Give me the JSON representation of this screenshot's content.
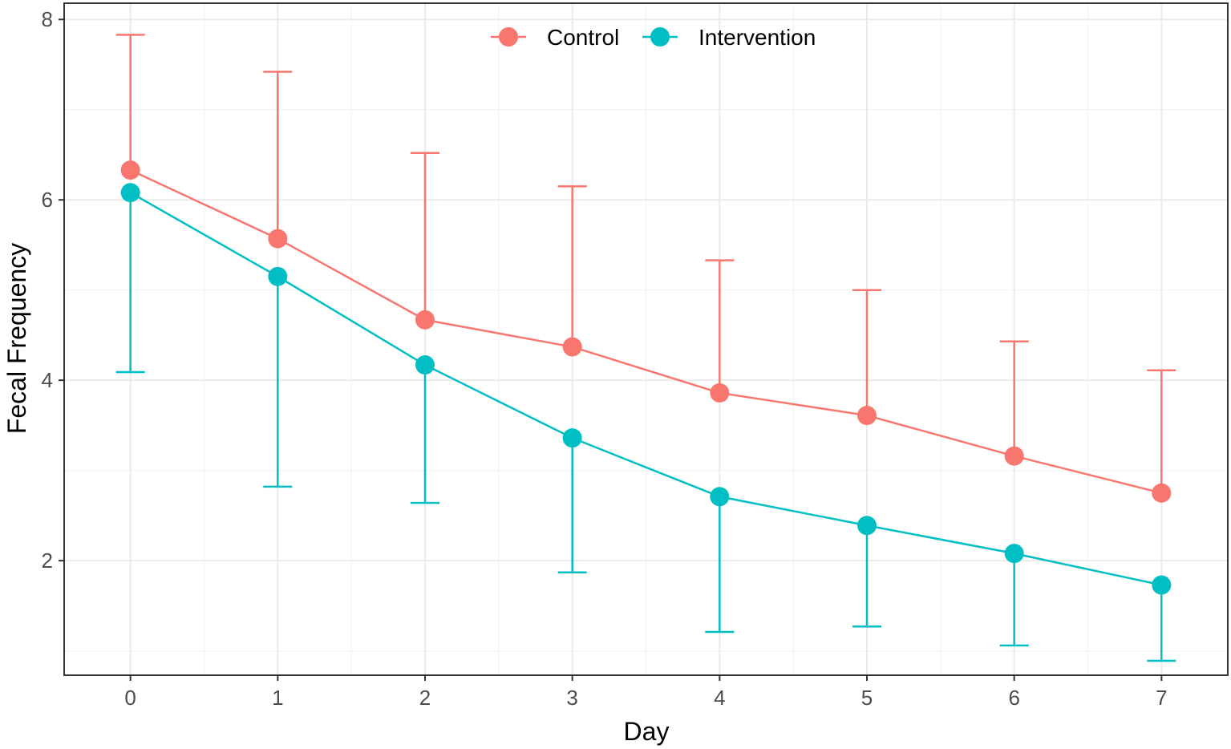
{
  "chart_data": {
    "type": "line",
    "title": "",
    "xlabel": "Day",
    "ylabel": "Fecal Frequency",
    "x": [
      0,
      1,
      2,
      3,
      4,
      5,
      6,
      7
    ],
    "xlim": [
      -0.45,
      7.45
    ],
    "ylim": [
      0.73,
      8.18
    ],
    "xticks": [
      "0",
      "1",
      "2",
      "3",
      "4",
      "5",
      "6",
      "7"
    ],
    "yticks": [
      "2",
      "4",
      "6",
      "8"
    ],
    "grid": true,
    "legend_position": "top-center",
    "series": [
      {
        "name": "Control",
        "color": "#F8766D",
        "values": [
          6.33,
          5.57,
          4.67,
          4.37,
          3.86,
          3.61,
          3.16,
          2.75
        ],
        "error_upper": [
          7.83,
          7.42,
          6.52,
          6.15,
          5.33,
          5.0,
          4.43,
          4.11
        ]
      },
      {
        "name": "Intervention",
        "color": "#00BFC4",
        "values": [
          6.08,
          5.15,
          4.17,
          3.36,
          2.71,
          2.39,
          2.08,
          1.73
        ],
        "error_lower": [
          4.09,
          2.82,
          2.64,
          1.87,
          1.21,
          1.27,
          1.06,
          0.89
        ]
      }
    ]
  }
}
